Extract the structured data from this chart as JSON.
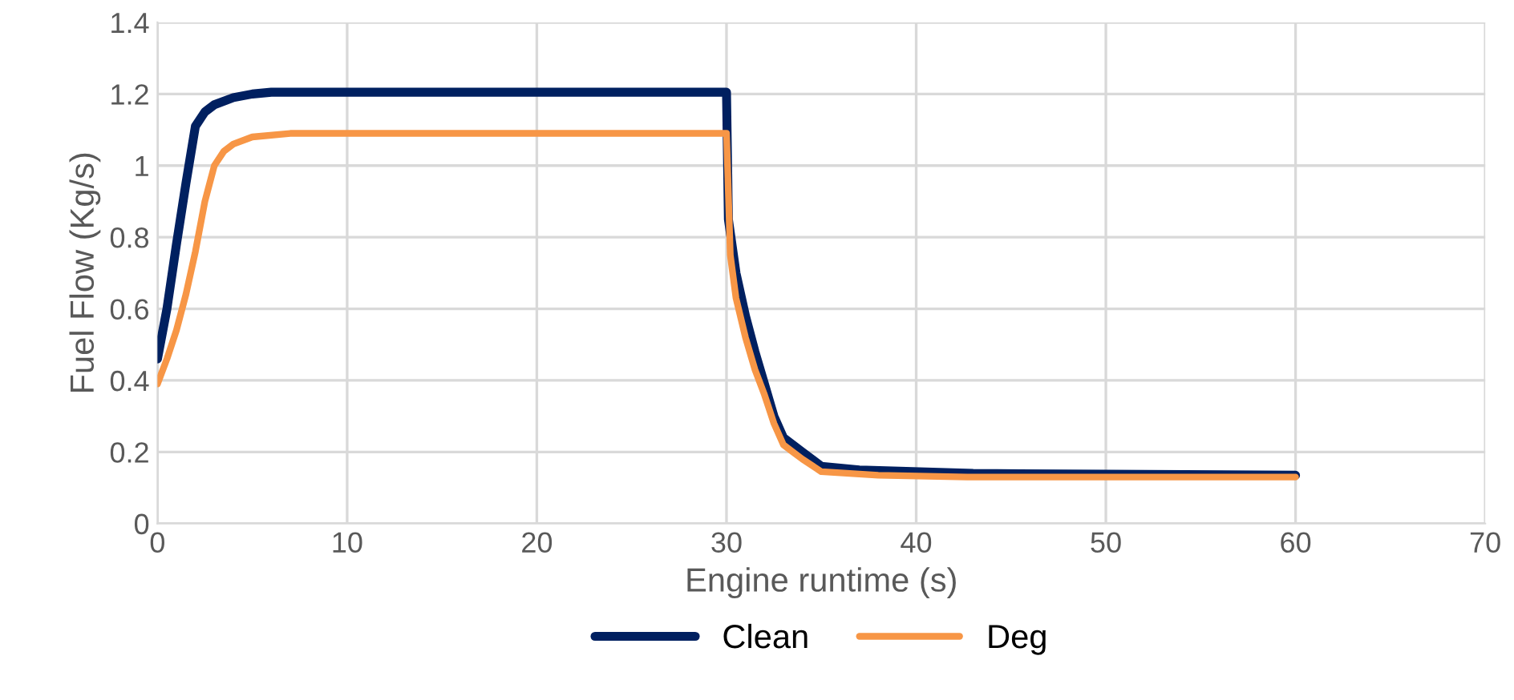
{
  "chart_data": {
    "type": "line",
    "xlabel": "Engine runtime (s)",
    "ylabel": "Fuel Flow (Kg/s)",
    "xlim": [
      0,
      70
    ],
    "xticks": [
      0,
      10,
      20,
      30,
      40,
      50,
      60,
      70
    ],
    "ylim": [
      0,
      1.4
    ],
    "yticks": [
      0,
      0.2,
      0.4,
      0.6,
      0.8,
      1,
      1.2,
      1.4
    ],
    "grid": true,
    "legend": "bottom",
    "marker": "none",
    "line_style": "solid",
    "series": [
      {
        "name": "Clean",
        "color": "#002060",
        "x": [
          0,
          0.5,
          1,
          1.5,
          2,
          2.5,
          3,
          4,
          5,
          6,
          10,
          20,
          30,
          30.1,
          30.5,
          31,
          31.5,
          32,
          32.5,
          33,
          33.5,
          34,
          35,
          37,
          43,
          50,
          60
        ],
        "values": [
          0.46,
          0.6,
          0.78,
          0.95,
          1.11,
          1.15,
          1.17,
          1.19,
          1.2,
          1.205,
          1.205,
          1.205,
          1.205,
          0.85,
          0.7,
          0.58,
          0.48,
          0.39,
          0.3,
          0.24,
          0.22,
          0.2,
          0.16,
          0.15,
          0.14,
          0.138,
          0.135
        ]
      },
      {
        "name": "Deg",
        "color": "#f79646",
        "x": [
          0,
          0.5,
          1,
          1.5,
          2,
          2.5,
          3,
          3.5,
          4,
          5,
          7,
          10,
          20,
          30,
          30.2,
          30.5,
          31,
          31.5,
          32,
          32.5,
          33,
          33.5,
          34,
          35,
          38,
          42.7,
          50,
          60
        ],
        "values": [
          0.39,
          0.46,
          0.54,
          0.64,
          0.76,
          0.9,
          1.0,
          1.04,
          1.06,
          1.08,
          1.09,
          1.09,
          1.09,
          1.09,
          0.75,
          0.63,
          0.52,
          0.43,
          0.36,
          0.28,
          0.22,
          0.2,
          0.18,
          0.145,
          0.135,
          0.13,
          0.13,
          0.13
        ]
      }
    ]
  }
}
